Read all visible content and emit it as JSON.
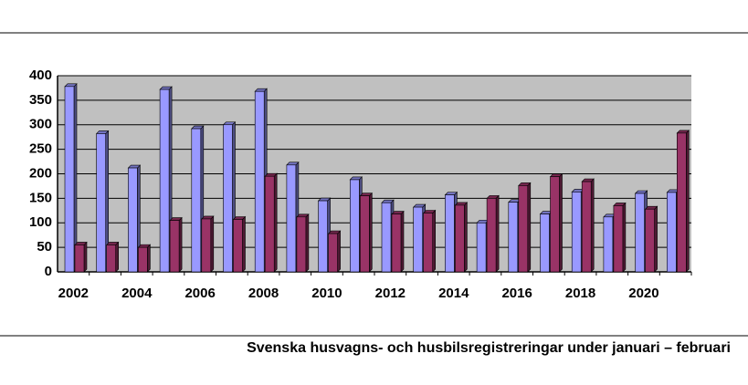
{
  "chart_data": {
    "type": "bar",
    "caption": "Svenska husvagns- och husbilsregistreringar under januari – februari",
    "categories": [
      "2002",
      null,
      "2004",
      null,
      "2006",
      null,
      "2008",
      null,
      "2010",
      null,
      "2012",
      null,
      "2014",
      null,
      "2016",
      null,
      "2018",
      null,
      "2020",
      null
    ],
    "series": [
      {
        "color": "#9999ff",
        "values": [
          378,
          282,
          212,
          372,
          292,
          300,
          368,
          218,
          145,
          188,
          141,
          132,
          157,
          100,
          142,
          118,
          163,
          112,
          160,
          162
        ]
      },
      {
        "color": "#993366",
        "values": [
          55,
          55,
          50,
          105,
          108,
          107,
          195,
          112,
          78,
          155,
          118,
          120,
          136,
          150,
          176,
          194,
          184,
          135,
          128,
          283
        ]
      }
    ],
    "ylim": [
      0,
      400
    ],
    "yticks": [
      0,
      50,
      100,
      150,
      200,
      250,
      300,
      350,
      400
    ],
    "grid": true
  }
}
